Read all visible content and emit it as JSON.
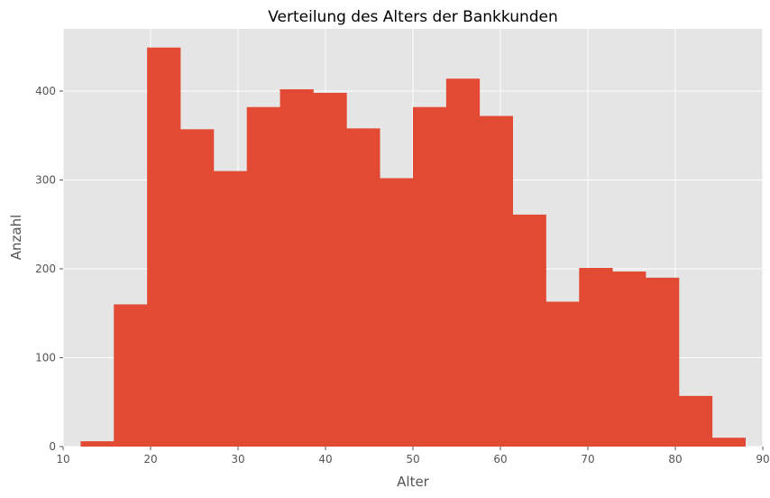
{
  "chart_data": {
    "type": "bar",
    "title": "Verteilung des Alters der Bankkunden",
    "xlabel": "Alter",
    "ylabel": "Anzahl",
    "xlim": [
      10,
      90
    ],
    "ylim": [
      0,
      470
    ],
    "xticks": [
      10,
      20,
      30,
      40,
      50,
      60,
      70,
      80,
      90
    ],
    "yticks": [
      0,
      100,
      200,
      300,
      400
    ],
    "grid": true,
    "bin_edges": [
      12,
      15.8,
      19.6,
      23.4,
      27.2,
      31,
      34.8,
      38.6,
      42.4,
      46.2,
      50,
      53.8,
      57.6,
      61.4,
      65.2,
      69,
      72.8,
      76.6,
      80.4,
      84.2,
      88
    ],
    "values": [
      6,
      160,
      449,
      357,
      310,
      382,
      402,
      398,
      358,
      302,
      382,
      414,
      372,
      261,
      163,
      201,
      197,
      190,
      57,
      10
    ],
    "colors": {
      "bar": "#E24A33",
      "plot_bg": "#E5E5E5",
      "grid": "#FFFFFF"
    }
  }
}
